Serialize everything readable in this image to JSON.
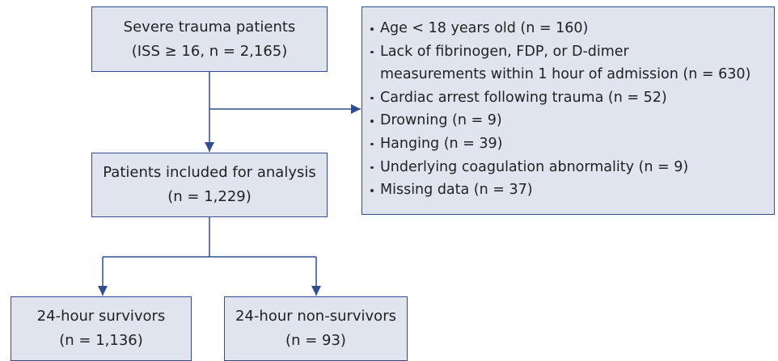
{
  "nodes": [
    {
      "lines": [
        "Severe trauma patients",
        "(ISS ≥ 16, n = 2,165)"
      ]
    },
    {
      "lines": [
        "Patients included for analysis",
        "(n = 1,229)"
      ]
    },
    {
      "lines": [
        "24-hour survivors",
        "(n = 1,136)"
      ]
    },
    {
      "lines": [
        "24-hour non-survivors",
        "(n = 93)"
      ]
    }
  ],
  "exclusions": [
    {
      "lines": [
        "Age < 18 years old (n = 160)"
      ]
    },
    {
      "lines": [
        "Lack of fibrinogen, FDP, or D-dimer",
        "measurements within 1 hour of admission (n = 630)"
      ]
    },
    {
      "lines": [
        "Cardiac arrest following trauma (n = 52)"
      ]
    },
    {
      "lines": [
        "Drowning (n = 9)"
      ]
    },
    {
      "lines": [
        "Hanging (n = 39)"
      ]
    },
    {
      "lines": [
        "Underlying coagulation abnormality (n = 9)"
      ]
    },
    {
      "lines": [
        "Missing data (n = 37)"
      ]
    }
  ]
}
